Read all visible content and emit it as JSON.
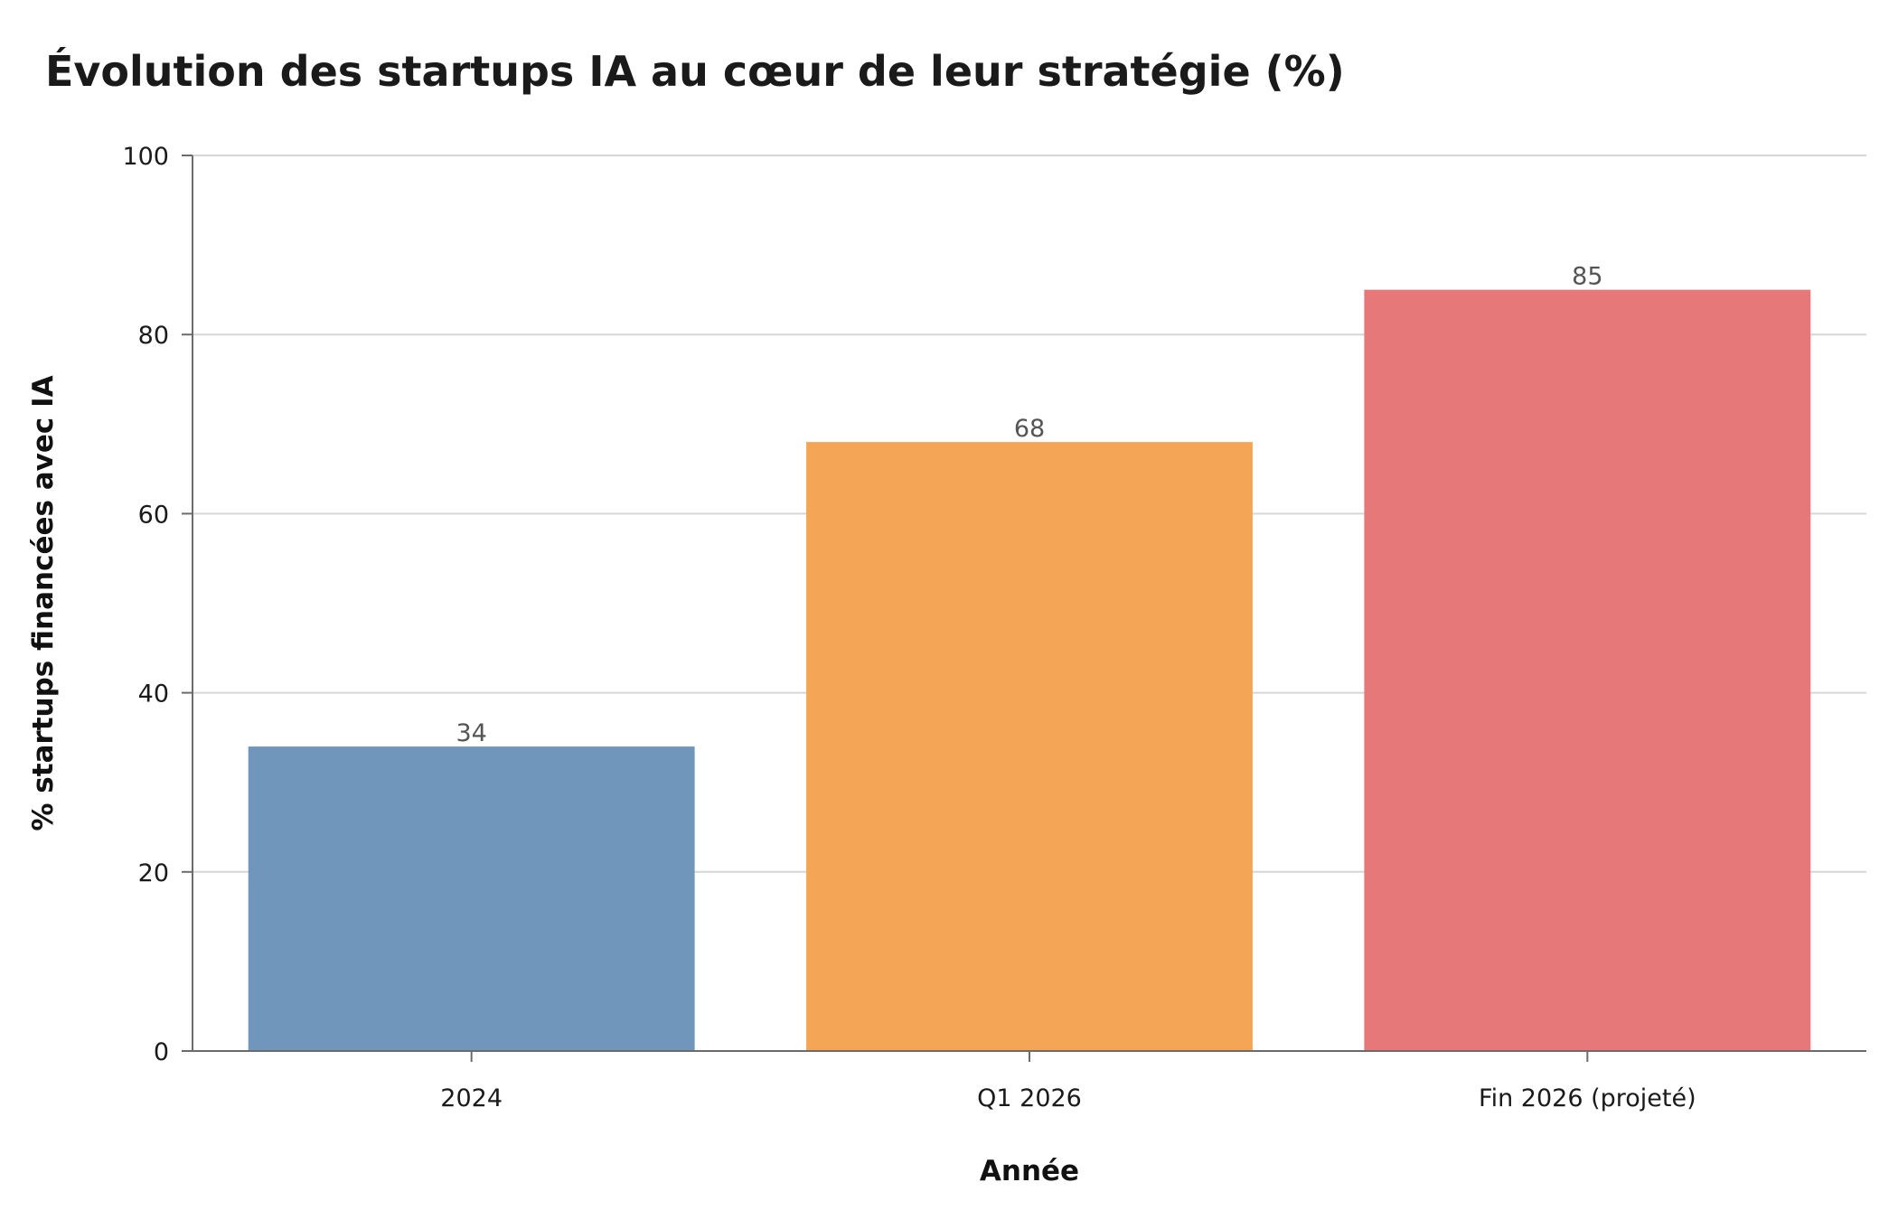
{
  "chart_data": {
    "type": "bar",
    "title": "Évolution des startups IA au cœur de leur stratégie (%)",
    "xlabel": "Année",
    "ylabel": "% startups financées avec IA",
    "categories": [
      "2024",
      "Q1 2026",
      "Fin 2026 (projeté)"
    ],
    "values": [
      34,
      68,
      85
    ],
    "data_labels": [
      "34",
      "68",
      "85"
    ],
    "ylim": [
      0,
      100
    ],
    "yticks": [
      0,
      20,
      40,
      60,
      80,
      100
    ],
    "ytick_labels": [
      "0",
      "20",
      "40",
      "60",
      "80",
      "100"
    ],
    "grid": true,
    "legend": "none",
    "colors": [
      "#7196bb",
      "#f4a556",
      "#e77879"
    ]
  }
}
